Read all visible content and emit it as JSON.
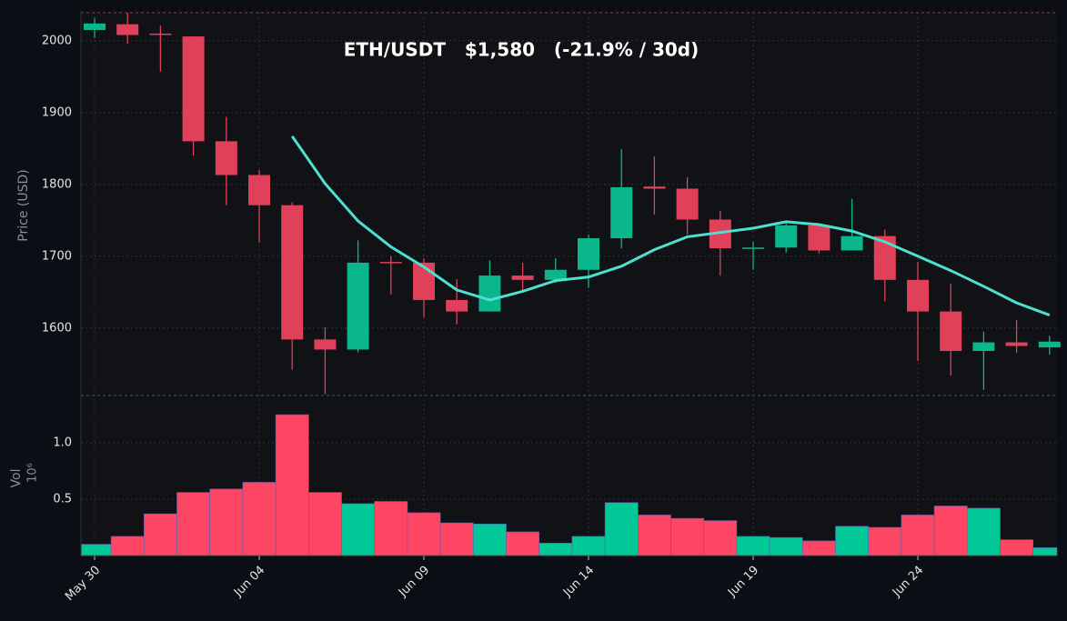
{
  "chart_data": [
    {
      "type": "candlestick",
      "title": "ETH/USDT   $1,580   (-21.9% / 30d)",
      "y_label": "Price (USD)",
      "categories": [
        "May 30",
        null,
        null,
        null,
        null,
        "Jun 04",
        null,
        null,
        null,
        null,
        "Jun 09",
        null,
        null,
        null,
        null,
        "Jun 14",
        null,
        null,
        null,
        null,
        "Jun 19",
        null,
        null,
        null,
        null,
        "Jun 24",
        null,
        null,
        null,
        null
      ],
      "open": [
        2015,
        2023,
        2010,
        2006,
        1860,
        1813,
        1771,
        1584,
        1570,
        1692,
        1691,
        1639,
        1623,
        1673,
        1667,
        1681,
        1725,
        1797,
        1794,
        1751,
        1711,
        1712,
        1743,
        1708,
        1728,
        1667,
        1623,
        1568,
        1580,
        1573
      ],
      "high": [
        2032,
        2039,
        2021,
        2006,
        1894,
        1820,
        1775,
        1601,
        1722,
        1700,
        1697,
        1668,
        1694,
        1691,
        1697,
        1730,
        1849,
        1839,
        1810,
        1763,
        1720,
        1747,
        1745,
        1780,
        1737,
        1692,
        1662,
        1595,
        1611,
        1589
      ],
      "low": [
        2004,
        1996,
        1957,
        1840,
        1771,
        1719,
        1542,
        1508,
        1566,
        1647,
        1615,
        1605,
        1623,
        1652,
        1663,
        1656,
        1711,
        1758,
        1730,
        1673,
        1681,
        1705,
        1704,
        1708,
        1637,
        1554,
        1534,
        1514,
        1565,
        1563
      ],
      "close": [
        2024,
        2008,
        2008,
        1860,
        1813,
        1771,
        1584,
        1570,
        1691,
        1691,
        1639,
        1623,
        1673,
        1667,
        1681,
        1725,
        1796,
        1794,
        1751,
        1711,
        1712,
        1743,
        1708,
        1728,
        1667,
        1623,
        1568,
        1580,
        1575,
        1581
      ],
      "series": [
        {
          "color": "#4ee0cf",
          "values": [
            null,
            null,
            null,
            null,
            null,
            null,
            1867,
            1801,
            1749,
            1713,
            1685,
            1653,
            1639,
            1651,
            1666,
            1671,
            1686,
            1709,
            1727,
            1733,
            1739,
            1748,
            1744,
            1735,
            1720,
            1700,
            1680,
            1658,
            1635,
            1618
          ]
        }
      ],
      "up_color": "#0ab68b",
      "down_color": "#e0405a",
      "ylim": [
        1506,
        2039
      ],
      "yticks": [
        1600,
        1700,
        1800,
        1900,
        2000
      ],
      "grid": true
    },
    {
      "type": "bar",
      "y_label": "Vol",
      "scale_label": "10⁶",
      "values": [
        0.1,
        0.17,
        0.37,
        0.56,
        0.59,
        0.65,
        1.25,
        0.56,
        0.46,
        0.48,
        0.38,
        0.29,
        0.28,
        0.21,
        0.11,
        0.17,
        0.47,
        0.36,
        0.33,
        0.31,
        0.17,
        0.16,
        0.13,
        0.26,
        0.25,
        0.36,
        0.44,
        0.42,
        0.14,
        0.07
      ],
      "up_color": "#00c896",
      "down_color": "#fc4664",
      "ylim": [
        0,
        1.42
      ],
      "yticks": [
        0.5,
        {
          "value": 1,
          "label": "1.0"
        }
      ],
      "grid": true
    }
  ]
}
